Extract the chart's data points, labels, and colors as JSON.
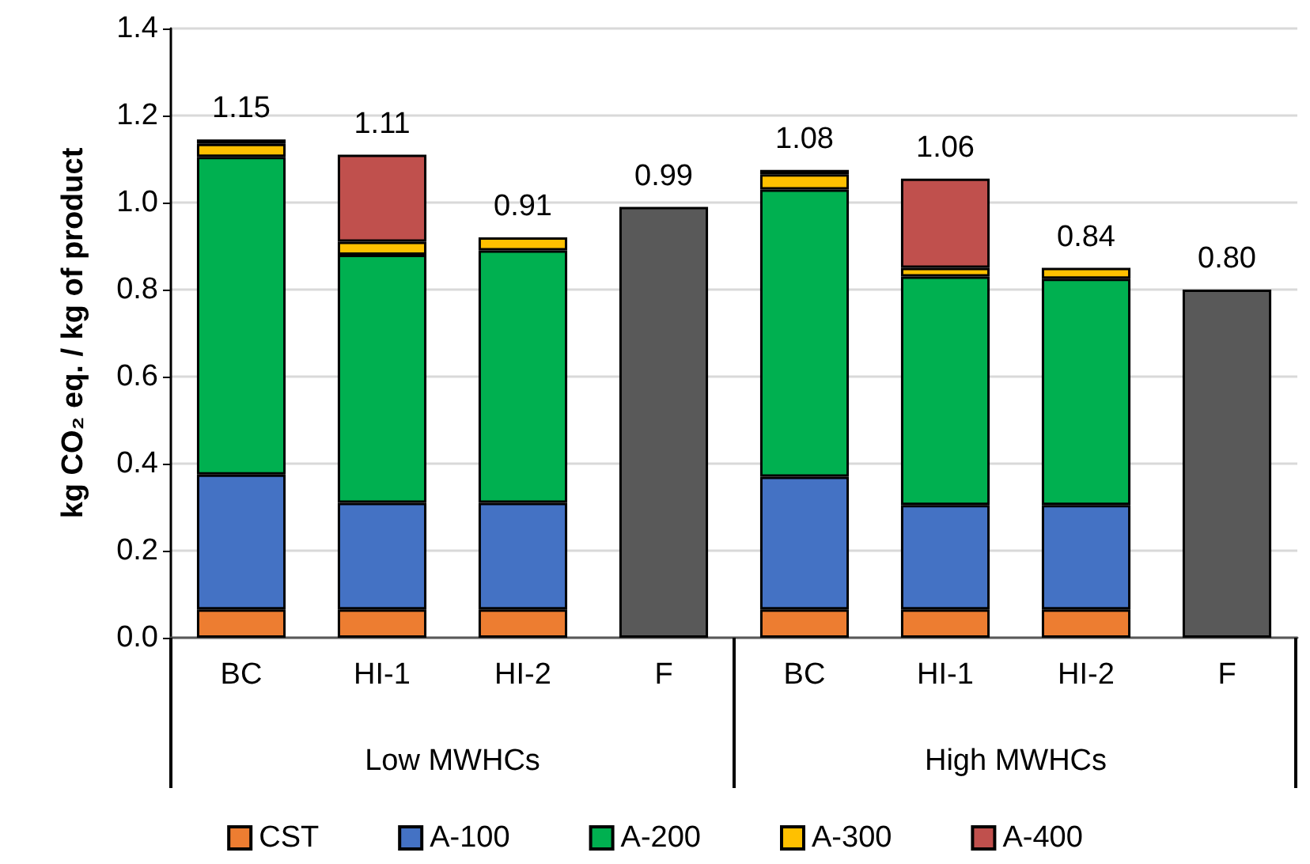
{
  "chart_data": {
    "type": "bar",
    "stacked": true,
    "ylabel": "kg CO₂ eq. / kg of product",
    "categories": [
      "BC",
      "HI-1",
      "HI-2",
      "F",
      "BC",
      "HI-1",
      "HI-2",
      "F"
    ],
    "series": [
      {
        "name": "CST",
        "color": "#ed7d31",
        "values": [
          0.065,
          0.065,
          0.065,
          null,
          0.065,
          0.065,
          0.065,
          null
        ]
      },
      {
        "name": "A-100",
        "color": "#4472c4",
        "values": [
          0.31,
          0.245,
          0.245,
          null,
          0.305,
          0.24,
          0.24,
          null
        ]
      },
      {
        "name": "A-200",
        "color": "#00b050",
        "values": [
          0.73,
          0.57,
          0.58,
          null,
          0.66,
          0.525,
          0.52,
          null
        ]
      },
      {
        "name": "A-300",
        "color": "#ffc000",
        "values": [
          0.03,
          0.03,
          0.03,
          null,
          0.035,
          0.02,
          0.025,
          null
        ]
      },
      {
        "name": "A-400",
        "color": "#c0504d",
        "values": [
          0.01,
          0.2,
          null,
          null,
          0.01,
          0.205,
          null,
          null
        ]
      },
      {
        "color": "#595959",
        "values": [
          null,
          null,
          null,
          0.99,
          null,
          null,
          null,
          0.8
        ]
      }
    ],
    "totals": [
      "1.15",
      "1.11",
      "0.91",
      "0.99",
      "1.08",
      "1.06",
      "0.84",
      "0.80"
    ],
    "annotations": [
      "Low MWHCs",
      "High MWHCs"
    ],
    "ylim": [
      0,
      1.4
    ],
    "yticks": [
      {
        "value": 0,
        "label": "0.0"
      },
      {
        "value": 0.2,
        "label": "0.2"
      },
      {
        "value": 0.4,
        "label": "0.4"
      },
      {
        "value": 0.6,
        "label": "0.6"
      },
      {
        "value": 0.8,
        "label": "0.8"
      },
      {
        "value": 1.0,
        "label": "1.0"
      },
      {
        "value": 1.2,
        "label": "1.2"
      },
      {
        "value": 1.4,
        "label": "1.4"
      }
    ],
    "grid": "y",
    "legend": "bottom"
  }
}
